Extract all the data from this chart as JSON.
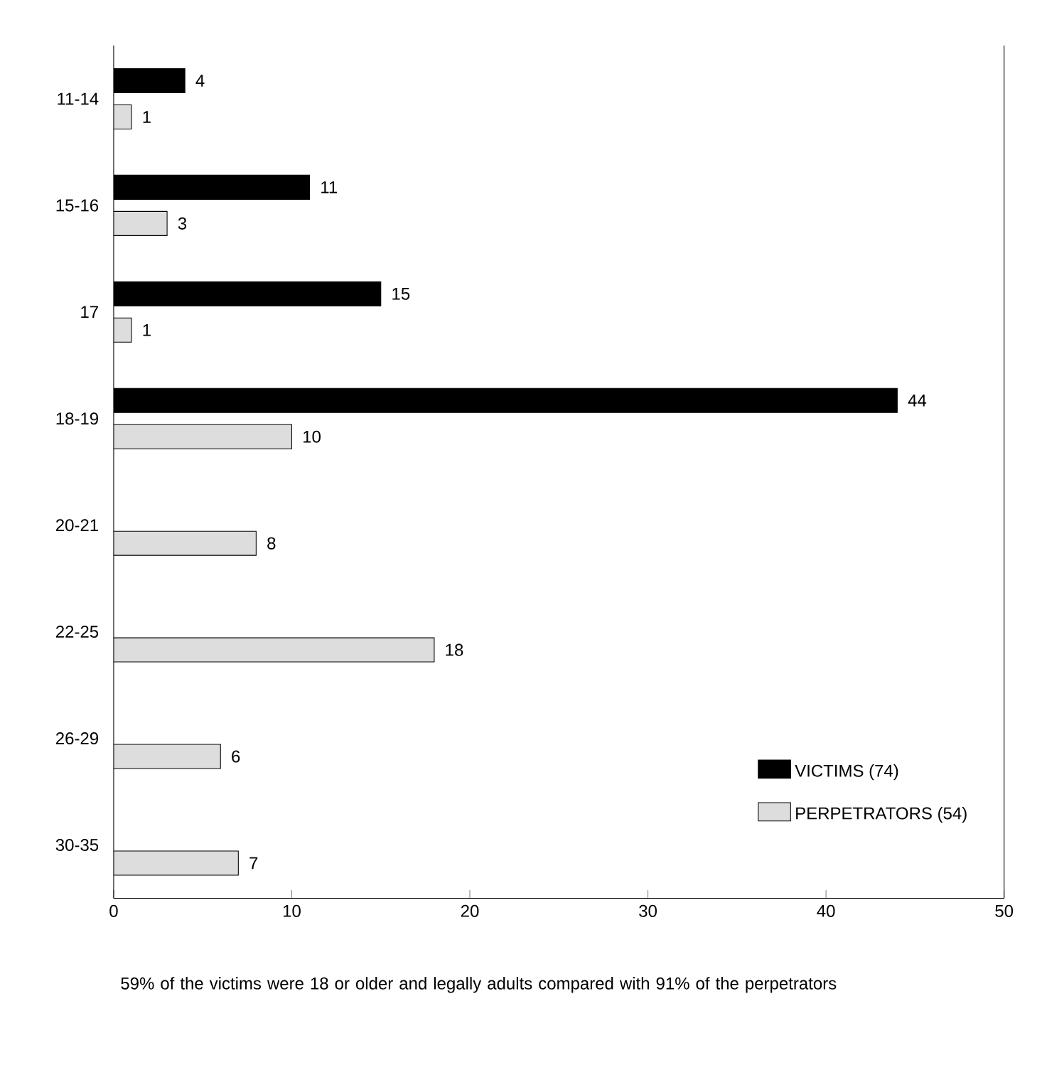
{
  "chart_data": {
    "type": "bar",
    "orientation": "horizontal",
    "categories": [
      "11-14",
      "15-16",
      "17",
      "18-19",
      "20-21",
      "22-25",
      "26-29",
      "30-35"
    ],
    "series": [
      {
        "name": "VICTIMS (74)",
        "color": "#000000",
        "values": [
          4,
          11,
          15,
          44,
          null,
          null,
          null,
          null
        ]
      },
      {
        "name": "PERPETRATORS (54)",
        "color": "#dddddd",
        "values": [
          1,
          3,
          1,
          10,
          8,
          18,
          6,
          7
        ]
      }
    ],
    "xlim": [
      0,
      50
    ],
    "xticks": [
      0,
      10,
      20,
      30,
      40,
      50
    ],
    "data_labels": true,
    "legend": "bottom right",
    "grid": false,
    "annotations": [
      "59% of the victims were 18 or older and legally adults compared with 91% of the perpetrators"
    ]
  }
}
